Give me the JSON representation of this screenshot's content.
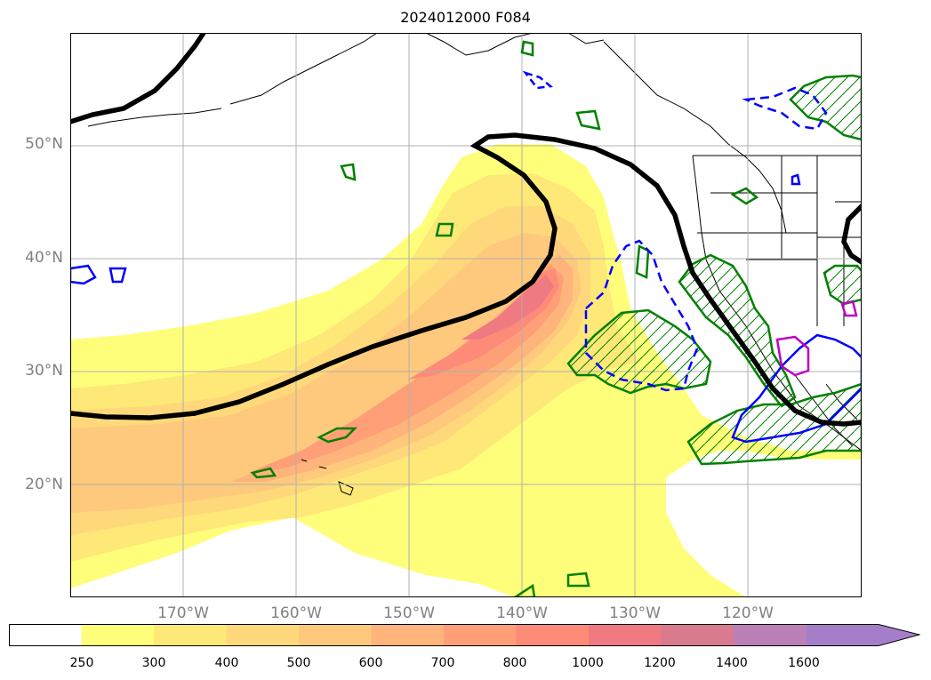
{
  "title": "2024012000 F084",
  "map": {
    "projection": "plate-carree",
    "lon_range": [
      -180,
      -110
    ],
    "lat_range": [
      10,
      60
    ],
    "gridlines": true,
    "lat_labels": [
      "20°N",
      "30°N",
      "40°N",
      "50°N"
    ],
    "lon_labels": [
      "170°W",
      "160°W",
      "150°W",
      "140°W",
      "130°W",
      "120°W"
    ],
    "ivt_shading_colors": {
      "250": "#fefe7a",
      "300": "#fee877",
      "400": "#fed87a",
      "500": "#fec97c",
      "600": "#feb47a",
      "700": "#fe9f78",
      "800": "#fe8a78",
      "1000": "#f07a82",
      "1200": "#d97a8f",
      "1400": "#bb80b6",
      "1600": "#a57ec9"
    },
    "contour_colors": {
      "height_line": "#000000",
      "green_hatched": "#008000",
      "blue_solid": "#0000ff",
      "blue_dashed": "#0000ff",
      "magenta": "#c000c0"
    }
  },
  "colorbar": {
    "ticks": [
      "250",
      "300",
      "400",
      "500",
      "600",
      "700",
      "800",
      "1000",
      "1200",
      "1400",
      "1600"
    ],
    "colors": [
      "#ffffff",
      "#fefe7a",
      "#fee877",
      "#fed87a",
      "#fec97c",
      "#feb47a",
      "#fe9f78",
      "#fe8a78",
      "#f07a82",
      "#d97a8f",
      "#bb80b6",
      "#a57ec9"
    ],
    "extend": "max"
  }
}
